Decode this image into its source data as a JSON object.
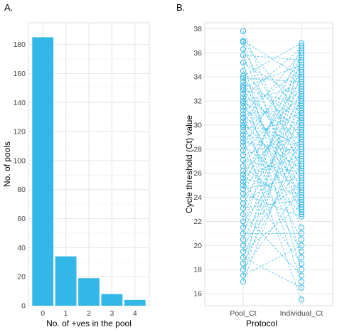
{
  "figure": {
    "panel_a_label": "A.",
    "panel_b_label": "B."
  },
  "colors": {
    "bar_fill": "#33b7e8",
    "panel_bg": "#ffffff",
    "grid": "#e6e6e6",
    "line": "#4fc3ea"
  },
  "chart_data": [
    {
      "type": "bar",
      "panel": "A.",
      "xlabel": "No. of +ves in the pool",
      "ylabel": "No. of pools",
      "categories": [
        "0",
        "1",
        "2",
        "3",
        "4"
      ],
      "values": [
        185,
        34,
        19,
        8,
        4
      ],
      "ylim": [
        0,
        195
      ],
      "yticks": [
        0,
        20,
        40,
        60,
        80,
        100,
        120,
        140,
        160,
        180
      ],
      "grid": true
    },
    {
      "type": "scatter",
      "panel": "B.",
      "xlabel": "Protocol",
      "ylabel": "Cycle threshold (Ct) value",
      "categories": [
        "Pool_Ct",
        "Individual_Ct"
      ],
      "ylim": [
        15,
        38.5
      ],
      "yticks": [
        16,
        18,
        20,
        22,
        24,
        26,
        28,
        30,
        32,
        34,
        36,
        38
      ],
      "grid": true,
      "paired_lines": "dashed",
      "pool_ct": [
        37.8,
        37.0,
        36.9,
        36.3,
        35.8,
        35.2,
        34.5,
        34.1,
        33.9,
        33.6,
        33.3,
        33.1,
        32.9,
        32.6,
        32.3,
        32.0,
        31.8,
        31.5,
        31.2,
        30.9,
        30.6,
        30.3,
        30.0,
        29.8,
        29.5,
        29.2,
        28.9,
        28.6,
        28.3,
        27.9,
        27.5,
        27.1,
        26.6,
        26.2,
        25.9,
        25.6,
        25.3,
        25.0,
        24.7,
        24.3,
        23.9,
        23.5,
        23.1,
        22.6,
        22.0,
        21.5,
        21.0,
        20.5,
        20.0,
        19.5,
        19.0,
        18.5,
        18.0,
        17.5,
        17.0
      ],
      "individual_ct": [
        36.8,
        36.6,
        36.4,
        36.2,
        36.0,
        35.8,
        35.6,
        35.4,
        35.2,
        35.0,
        34.8,
        34.6,
        34.4,
        34.2,
        34.0,
        33.8,
        33.6,
        33.4,
        33.2,
        33.0,
        32.8,
        32.6,
        32.4,
        32.2,
        32.0,
        31.8,
        31.6,
        31.4,
        31.2,
        31.0,
        30.8,
        30.6,
        30.4,
        30.2,
        30.0,
        29.8,
        29.6,
        29.4,
        29.2,
        29.0,
        28.8,
        28.6,
        28.4,
        28.2,
        28.0,
        27.8,
        27.6,
        27.4,
        27.2,
        27.0,
        26.8,
        26.6,
        26.4,
        26.2,
        26.0,
        25.8,
        25.6,
        25.4,
        25.2,
        25.0,
        24.8,
        24.6,
        24.4,
        24.2,
        24.0,
        23.8,
        23.6,
        23.4,
        23.2,
        23.0,
        22.8,
        22.6,
        22.4,
        21.5,
        21.0,
        20.5,
        20.0,
        19.5,
        19.0,
        18.5,
        18.0,
        17.5,
        17.0,
        16.5,
        15.5
      ]
    }
  ]
}
